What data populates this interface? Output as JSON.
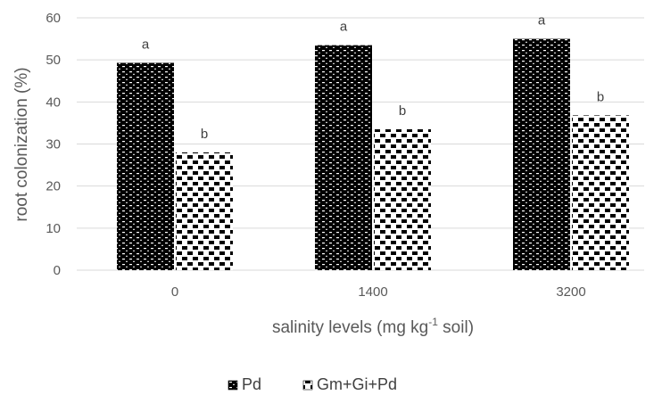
{
  "chart_data": {
    "type": "bar",
    "title": "",
    "categories": [
      "0",
      "1400",
      "3200"
    ],
    "series": [
      {
        "name": "Pd",
        "values": [
          49.3,
          53.5,
          55.0
        ],
        "labels": [
          "a",
          "a",
          "a"
        ]
      },
      {
        "name": "Gm+Gi+Pd",
        "values": [
          28.0,
          33.5,
          36.8
        ],
        "labels": [
          "b",
          "b",
          "b"
        ]
      }
    ],
    "xlabel": {
      "pre": "salinity levels (mg kg",
      "sup": "-1",
      "post": " soil)"
    },
    "ylabel": "root colonization (%)",
    "ylim": [
      0,
      60
    ],
    "yticks": [
      0,
      10,
      20,
      30,
      40,
      50,
      60
    ],
    "grid": true,
    "legend_position": "bottom"
  },
  "colors": {
    "series_fill": [
      "#000000",
      "#000000"
    ],
    "series_pattern_bg": [
      "#ffffff",
      "#ffffff"
    ],
    "grid": "#d9d9d9",
    "text": "#595959"
  }
}
